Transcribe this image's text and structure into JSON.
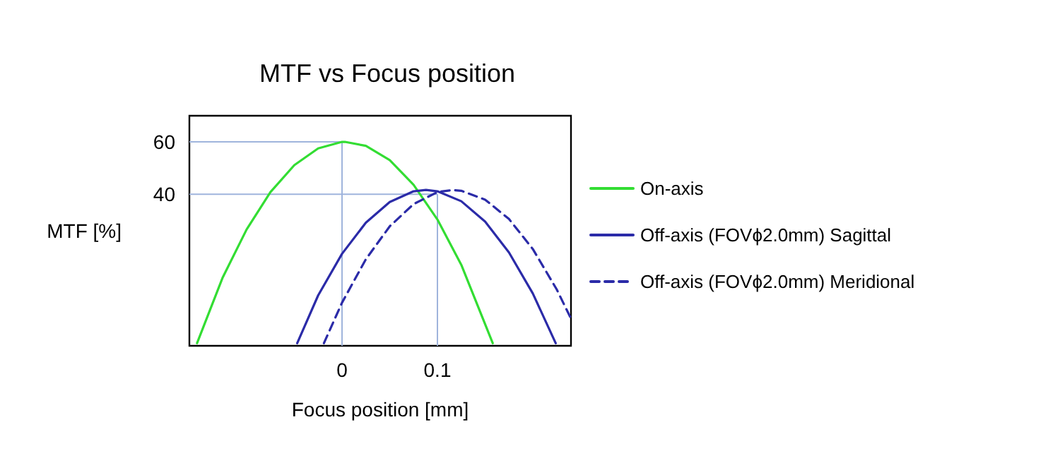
{
  "chart_data": {
    "type": "line",
    "title": "MTF vs Focus position",
    "xlabel": "Focus position [mm]",
    "ylabel": "MTF [%]",
    "xlim": [
      -0.16,
      0.24
    ],
    "ylim": [
      -18,
      70
    ],
    "xticks": [
      0,
      0.1
    ],
    "yticks": [
      60,
      40
    ],
    "grid": false,
    "legend": "right",
    "marker": "none",
    "series": [
      {
        "name": "On-axis",
        "color": "#33dd33",
        "line_style": "solid",
        "x": [
          -0.152,
          -0.125,
          -0.1,
          -0.075,
          -0.05,
          -0.025,
          0,
          0.003,
          0.025,
          0.05,
          0.075,
          0.1,
          0.125,
          0.158
        ],
        "values": [
          -17,
          8.2,
          26.5,
          40.8,
          51.1,
          57.5,
          60,
          60,
          58.5,
          53,
          43.6,
          30.3,
          13,
          -17
        ]
      },
      {
        "name": "Off-axis (FOVϕ2.0mm) Sagittal",
        "color": "#2b2ba8",
        "line_style": "solid",
        "x": [
          -0.047,
          -0.025,
          0,
          0.025,
          0.05,
          0.075,
          0.088,
          0.1,
          0.125,
          0.15,
          0.175,
          0.2,
          0.224
        ],
        "values": [
          -17,
          1.3,
          17.2,
          29.1,
          37,
          41.1,
          41.6,
          41.1,
          37.3,
          29.5,
          17.7,
          2,
          -17
        ]
      },
      {
        "name": "Off-axis (FOVϕ2.0mm) Meridional",
        "color": "#2b2ba8",
        "line_style": "dashed",
        "x": [
          -0.019,
          0,
          0.025,
          0.05,
          0.075,
          0.1,
          0.116,
          0.125,
          0.15,
          0.175,
          0.2,
          0.225,
          0.24
        ],
        "values": [
          -17,
          -1.5,
          15.1,
          27.7,
          36.2,
          40.8,
          41.6,
          41.3,
          37.9,
          30.5,
          19,
          3.6,
          -7.6
        ]
      }
    ],
    "ref_lines": [
      {
        "axis": "y",
        "value": 60,
        "color": "#9fb4dc"
      },
      {
        "axis": "y",
        "value": 40,
        "color": "#9fb4dc"
      },
      {
        "axis": "x",
        "value": 0,
        "color": "#9fb4dc"
      },
      {
        "axis": "x",
        "value": 0.1,
        "color": "#9fb4dc"
      }
    ]
  }
}
